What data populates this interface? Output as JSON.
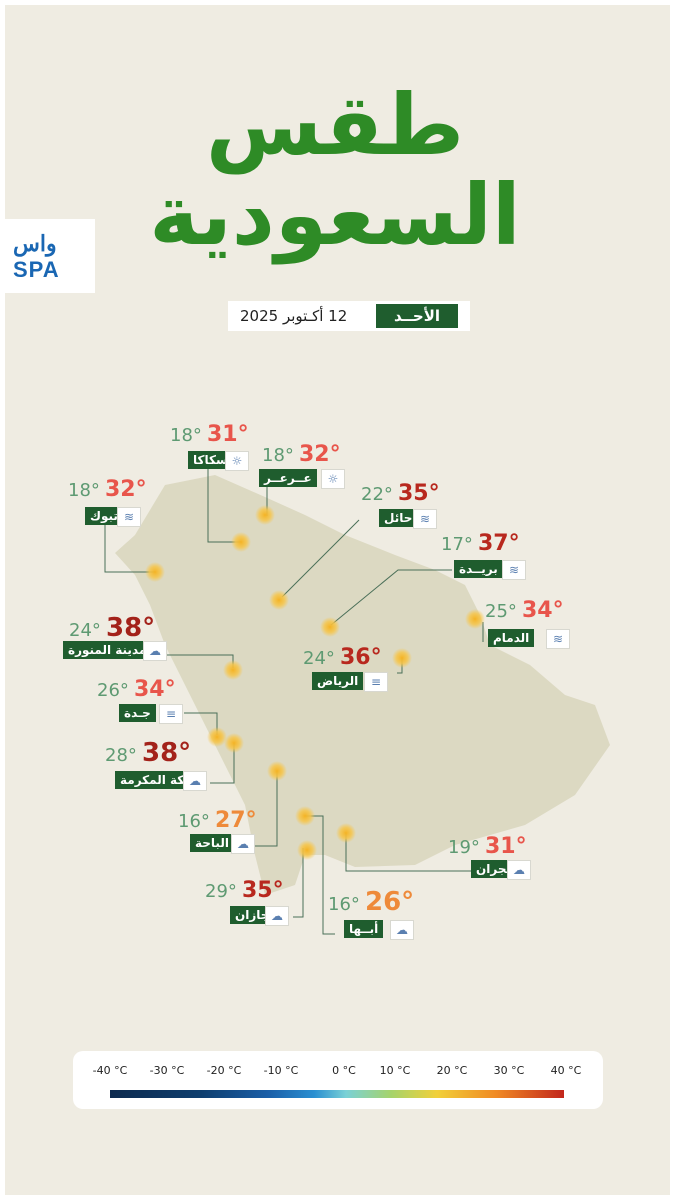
{
  "title": {
    "line1": "طقس",
    "line2": "السعودية"
  },
  "logo": {
    "text_top": "واس",
    "text_bottom": "SPA"
  },
  "date": {
    "day": "الأحــد",
    "date": "12 أكـتوبر 2025"
  },
  "cities": [
    {
      "id": "sakaka",
      "name": "سكاكا",
      "min": "18°",
      "max": "31°",
      "icon": "sun-icon",
      "max_color": "#e8554b"
    },
    {
      "id": "arar",
      "name": "عــرعــر",
      "min": "18°",
      "max": "32°",
      "icon": "sun-icon",
      "max_color": "#e8554b"
    },
    {
      "id": "tabuk",
      "name": "تبوك",
      "min": "18°",
      "max": "32°",
      "icon": "wind-icon",
      "max_color": "#e8554b"
    },
    {
      "id": "hail",
      "name": "حائل",
      "min": "22°",
      "max": "35°",
      "icon": "wind-icon",
      "max_color": "#b8281e"
    },
    {
      "id": "buraidah",
      "name": "بريــدة",
      "min": "17°",
      "max": "37°",
      "icon": "wind-icon",
      "max_color": "#b8281e"
    },
    {
      "id": "dammam",
      "name": "الدمام",
      "min": "25°",
      "max": "34°",
      "icon": "wind-icon",
      "max_color": "#e8554b"
    },
    {
      "id": "madinah",
      "name": "المدينة المنورة",
      "min": "24°",
      "max": "38°",
      "icon": "storm-icon",
      "max_color": "#a3221a"
    },
    {
      "id": "riyadh",
      "name": "الرياض",
      "min": "24°",
      "max": "36°",
      "icon": "fog-icon",
      "max_color": "#b8281e"
    },
    {
      "id": "jeddah",
      "name": "جـدة",
      "min": "26°",
      "max": "34°",
      "icon": "fog-icon",
      "max_color": "#e8554b"
    },
    {
      "id": "makkah",
      "name": "مكة المكرمة",
      "min": "28°",
      "max": "38°",
      "icon": "storm-icon",
      "max_color": "#a3221a"
    },
    {
      "id": "albaha",
      "name": "الباحة",
      "min": "16°",
      "max": "27°",
      "icon": "storm-icon",
      "max_color": "#ee8a3a"
    },
    {
      "id": "najran",
      "name": "نجران",
      "min": "19°",
      "max": "31°",
      "icon": "storm-icon",
      "max_color": "#e8554b"
    },
    {
      "id": "jazan",
      "name": "جازان",
      "min": "29°",
      "max": "35°",
      "icon": "storm-icon",
      "max_color": "#b8281e"
    },
    {
      "id": "abha",
      "name": "أبــها",
      "min": "16°",
      "max": "26°",
      "icon": "storm-icon",
      "max_color": "#ee8a3a"
    }
  ],
  "legend": {
    "ticks": [
      "-40 °C",
      "-30 °C",
      "-20 °C",
      "-10 °C",
      "0 °C",
      "10 °C",
      "20 °C",
      "30 °C",
      "40 °C"
    ]
  },
  "colors": {
    "background": "#efece2",
    "title_green": "#2e8b26",
    "label_green": "#1f5d2e",
    "map_fill": "#dcd9c2",
    "marker": "#f4b324"
  }
}
